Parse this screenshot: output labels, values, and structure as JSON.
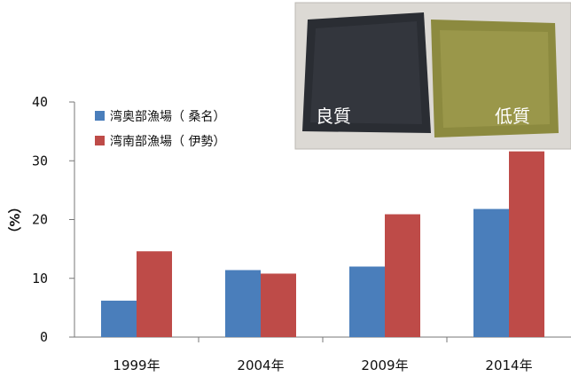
{
  "chart_data": {
    "type": "bar",
    "title": "",
    "xlabel": "",
    "ylabel": "（%）",
    "categories": [
      "1999年",
      "2004年",
      "2009年",
      "2014年"
    ],
    "series": [
      {
        "name": "湾奥部漁場（ 桑名）",
        "color": "#4a7ebb",
        "values": [
          6.2,
          11.4,
          12.0,
          21.8
        ]
      },
      {
        "name": "湾南部漁場（ 伊勢）",
        "color": "#be4b48",
        "values": [
          14.6,
          10.8,
          20.9,
          31.6
        ]
      }
    ],
    "ylim": [
      0,
      40
    ],
    "yticks": [
      0,
      10,
      20,
      30,
      40
    ],
    "grid": false,
    "legend": "top-left"
  },
  "photo": {
    "left_label": "良質",
    "right_label": "低質"
  }
}
